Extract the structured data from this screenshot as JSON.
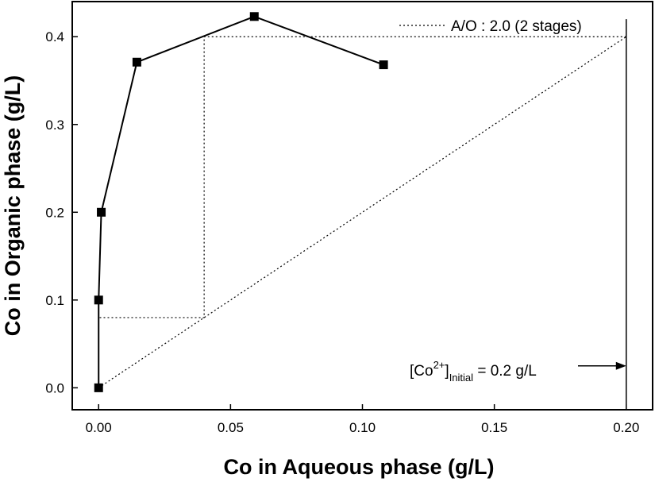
{
  "chart_data": {
    "type": "line",
    "xlabel": "Co in Aqueous phase (g/L)",
    "ylabel": "Co in Organic phase (g/L)",
    "xlim": [
      -0.01,
      0.21
    ],
    "ylim": [
      -0.025,
      0.44
    ],
    "x_ticks": [
      0.0,
      0.05,
      0.1,
      0.15,
      0.2
    ],
    "x_tick_labels": [
      "0.00",
      "0.05",
      "0.10",
      "0.15",
      "0.20"
    ],
    "y_ticks": [
      0.0,
      0.1,
      0.2,
      0.3,
      0.4
    ],
    "y_tick_labels": [
      "0.0",
      "0.1",
      "0.2",
      "0.3",
      "0.4"
    ],
    "grid": false,
    "series": [
      {
        "marker": "square",
        "color": "#000000",
        "x": [
          0.0,
          0.0,
          0.001,
          0.0145,
          0.059,
          0.108
        ],
        "y": [
          0.0,
          0.1,
          0.2,
          0.371,
          0.423,
          0.368
        ]
      },
      {
        "name": "A/O : 2.0 (2 stages)",
        "style": "dotted",
        "x": [
          0.0,
          0.2
        ],
        "y": [
          0.0,
          0.4
        ]
      }
    ],
    "stage_steps": {
      "style": "dotted",
      "x": [
        0.2,
        0.04,
        0.04,
        0.0
      ],
      "y": [
        0.4,
        0.4,
        0.08,
        0.08
      ]
    },
    "vertical_line": {
      "x": 0.2,
      "y_top": 0.42
    },
    "legend": {
      "placement": "top-right",
      "label": "A/O : 2.0 (2 stages)"
    },
    "annotation": {
      "text_before": "[Co",
      "superscript": "2+",
      "text_mid": "]",
      "subscript": "Initial",
      "text_after": " = 0.2 g/L",
      "arrow_to_x": 0.2,
      "y": 0.025
    }
  }
}
